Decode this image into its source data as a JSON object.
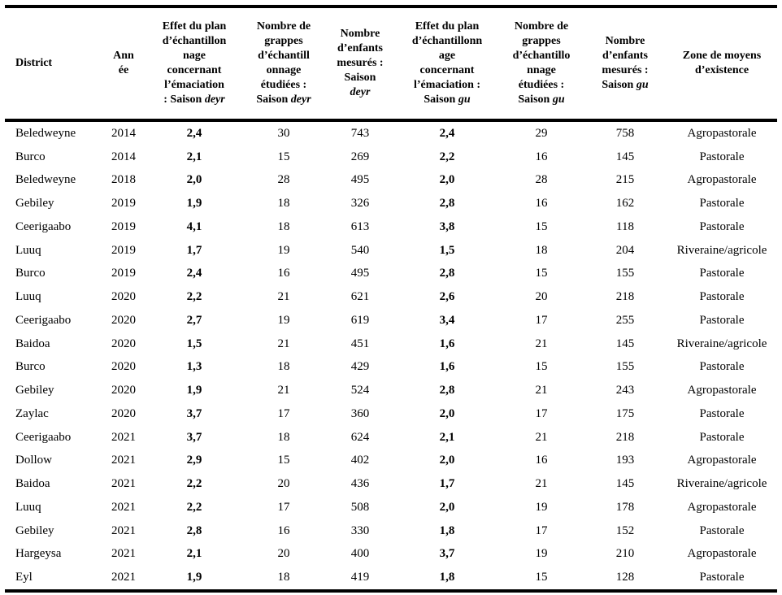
{
  "table": {
    "columns": [
      {
        "label": "District",
        "italic": ""
      },
      {
        "label": "Ann\née",
        "italic": ""
      },
      {
        "label": "Effet du plan\nd’échantillon\nnage\nconcernant\nl’émaciation\n: Saison ",
        "italic": "deyr"
      },
      {
        "label": "Nombre de\ngrappes\nd’échantill\nonnage\nétudiées :\nSaison ",
        "italic": "deyr"
      },
      {
        "label": "Nombre\nd’enfants\nmesurés :\nSaison\n",
        "italic": "deyr"
      },
      {
        "label": "Effet du plan\nd’échantillonn\nage\nconcernant\nl’émaciation :\nSaison ",
        "italic": "gu"
      },
      {
        "label": "Nombre de\ngrappes\nd’échantillo\nnnage\nétudiées :\nSaison ",
        "italic": "gu"
      },
      {
        "label": "Nombre\nd’enfants\nmesurés :\nSaison ",
        "italic": "gu"
      },
      {
        "label": "Zone de moyens\nd’existence",
        "italic": ""
      }
    ],
    "rows": [
      {
        "district": "Beledweyne",
        "year": "2014",
        "effet_deyr": "2,4",
        "grappes_deyr": "30",
        "enfants_deyr": "743",
        "effet_gu": "2,4",
        "grappes_gu": "29",
        "enfants_gu": "758",
        "zone": "Agropastorale"
      },
      {
        "district": "Burco",
        "year": "2014",
        "effet_deyr": "2,1",
        "grappes_deyr": "15",
        "enfants_deyr": "269",
        "effet_gu": "2,2",
        "grappes_gu": "16",
        "enfants_gu": "145",
        "zone": "Pastorale"
      },
      {
        "district": "Beledweyne",
        "year": "2018",
        "effet_deyr": "2,0",
        "grappes_deyr": "28",
        "enfants_deyr": "495",
        "effet_gu": "2,0",
        "grappes_gu": "28",
        "enfants_gu": "215",
        "zone": "Agropastorale"
      },
      {
        "district": "Gebiley",
        "year": "2019",
        "effet_deyr": "1,9",
        "grappes_deyr": "18",
        "enfants_deyr": "326",
        "effet_gu": "2,8",
        "grappes_gu": "16",
        "enfants_gu": "162",
        "zone": "Pastorale"
      },
      {
        "district": "Ceerigaabo",
        "year": "2019",
        "effet_deyr": "4,1",
        "grappes_deyr": "18",
        "enfants_deyr": "613",
        "effet_gu": "3,8",
        "grappes_gu": "15",
        "enfants_gu": "118",
        "zone": "Pastorale"
      },
      {
        "district": "Luuq",
        "year": "2019",
        "effet_deyr": "1,7",
        "grappes_deyr": "19",
        "enfants_deyr": "540",
        "effet_gu": "1,5",
        "grappes_gu": "18",
        "enfants_gu": "204",
        "zone": "Riveraine/agricole"
      },
      {
        "district": "Burco",
        "year": "2019",
        "effet_deyr": "2,4",
        "grappes_deyr": "16",
        "enfants_deyr": "495",
        "effet_gu": "2,8",
        "grappes_gu": "15",
        "enfants_gu": "155",
        "zone": "Pastorale"
      },
      {
        "district": "Luuq",
        "year": "2020",
        "effet_deyr": "2,2",
        "grappes_deyr": "21",
        "enfants_deyr": "621",
        "effet_gu": "2,6",
        "grappes_gu": "20",
        "enfants_gu": "218",
        "zone": "Pastorale"
      },
      {
        "district": "Ceerigaabo",
        "year": "2020",
        "effet_deyr": "2,7",
        "grappes_deyr": "19",
        "enfants_deyr": "619",
        "effet_gu": "3,4",
        "grappes_gu": "17",
        "enfants_gu": "255",
        "zone": "Pastorale"
      },
      {
        "district": "Baidoa",
        "year": "2020",
        "effet_deyr": "1,5",
        "grappes_deyr": "21",
        "enfants_deyr": "451",
        "effet_gu": "1,6",
        "grappes_gu": "21",
        "enfants_gu": "145",
        "zone": "Riveraine/agricole"
      },
      {
        "district": "Burco",
        "year": "2020",
        "effet_deyr": "1,3",
        "grappes_deyr": "18",
        "enfants_deyr": "429",
        "effet_gu": "1,6",
        "grappes_gu": "15",
        "enfants_gu": "155",
        "zone": "Pastorale"
      },
      {
        "district": "Gebiley",
        "year": "2020",
        "effet_deyr": "1,9",
        "grappes_deyr": "21",
        "enfants_deyr": "524",
        "effet_gu": "2,8",
        "grappes_gu": "21",
        "enfants_gu": "243",
        "zone": "Agropastorale"
      },
      {
        "district": "Zaylac",
        "year": "2020",
        "effet_deyr": "3,7",
        "grappes_deyr": "17",
        "enfants_deyr": "360",
        "effet_gu": "2,0",
        "grappes_gu": "17",
        "enfants_gu": "175",
        "zone": "Pastorale"
      },
      {
        "district": "Ceerigaabo",
        "year": "2021",
        "effet_deyr": "3,7",
        "grappes_deyr": "18",
        "enfants_deyr": "624",
        "effet_gu": "2,1",
        "grappes_gu": "21",
        "enfants_gu": "218",
        "zone": "Pastorale"
      },
      {
        "district": "Dollow",
        "year": "2021",
        "effet_deyr": "2,9",
        "grappes_deyr": "15",
        "enfants_deyr": "402",
        "effet_gu": "2,0",
        "grappes_gu": "16",
        "enfants_gu": "193",
        "zone": "Agropastorale"
      },
      {
        "district": "Baidoa",
        "year": "2021",
        "effet_deyr": "2,2",
        "grappes_deyr": "20",
        "enfants_deyr": "436",
        "effet_gu": "1,7",
        "grappes_gu": "21",
        "enfants_gu": "145",
        "zone": "Riveraine/agricole"
      },
      {
        "district": "Luuq",
        "year": "2021",
        "effet_deyr": "2,2",
        "grappes_deyr": "17",
        "enfants_deyr": "508",
        "effet_gu": "2,0",
        "grappes_gu": "19",
        "enfants_gu": "178",
        "zone": "Agropastorale"
      },
      {
        "district": "Gebiley",
        "year": "2021",
        "effet_deyr": "2,8",
        "grappes_deyr": "16",
        "enfants_deyr": "330",
        "effet_gu": "1,8",
        "grappes_gu": "17",
        "enfants_gu": "152",
        "zone": "Pastorale"
      },
      {
        "district": "Hargeysa",
        "year": "2021",
        "effet_deyr": "2,1",
        "grappes_deyr": "20",
        "enfants_deyr": "400",
        "effet_gu": "3,7",
        "grappes_gu": "19",
        "enfants_gu": "210",
        "zone": "Agropastorale"
      },
      {
        "district": "Eyl",
        "year": "2021",
        "effet_deyr": "1,9",
        "grappes_deyr": "18",
        "enfants_deyr": "419",
        "effet_gu": "1,8",
        "grappes_gu": "15",
        "enfants_gu": "128",
        "zone": "Pastorale"
      }
    ]
  }
}
